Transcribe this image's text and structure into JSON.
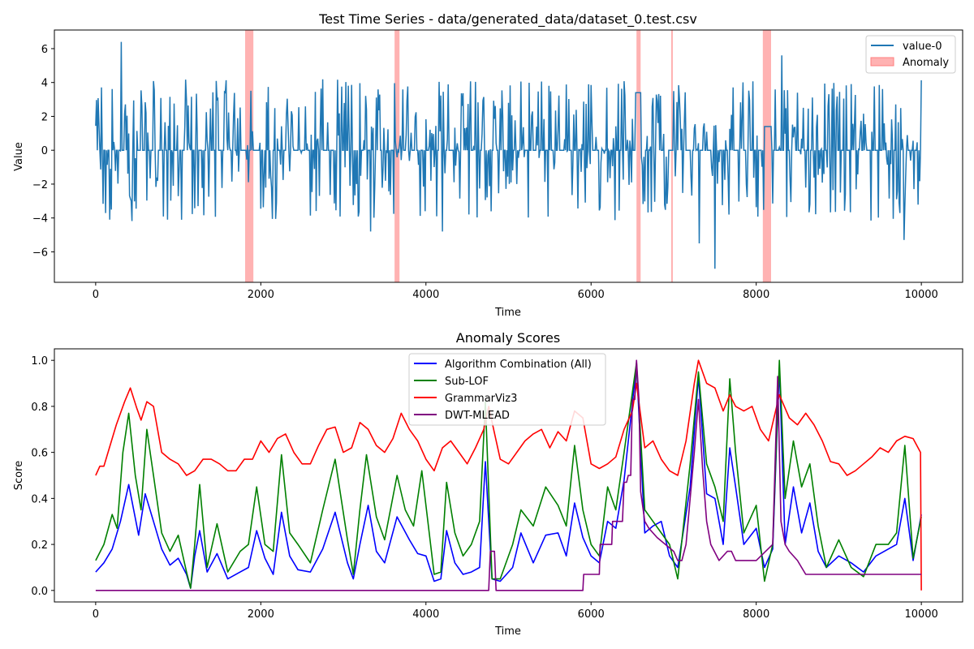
{
  "chart_data": [
    {
      "type": "line",
      "title": "Test Time Series - data/generated_data/dataset_0.test.csv",
      "xlabel": "Time",
      "ylabel": "Value",
      "xlim": [
        -500,
        10500
      ],
      "ylim": [
        -7.8,
        7.1
      ],
      "xticks": [
        0,
        2000,
        4000,
        6000,
        8000,
        10000
      ],
      "yticks": [
        -6,
        -4,
        -2,
        0,
        2,
        4,
        6
      ],
      "legend_position": "upper right",
      "grid": false,
      "series": [
        {
          "name": "value-0",
          "color": "#1f77b4",
          "x_range": [
            0,
            10000
          ],
          "description_of_values": "Spiky noise around 0, mostly within -4..4, occasional peaks near 6.4 and troughs near -7",
          "notable_points": [
            {
              "x": 310,
              "y": 6.4
            },
            {
              "x": 7500,
              "y": -7.0
            },
            {
              "x": 3330,
              "y": -4.8
            },
            {
              "x": 4200,
              "y": -4.8
            },
            {
              "x": 7310,
              "y": -5.5
            },
            {
              "x": 9790,
              "y": -5.3
            },
            {
              "x": 8310,
              "y": 5.6
            },
            {
              "x": 6550,
              "y": 3.4
            },
            {
              "x": 8110,
              "y": 1.4
            }
          ]
        }
      ],
      "anomaly_regions": {
        "name": "Anomaly",
        "color": "#ff7f7f",
        "ranges": [
          [
            1810,
            1910
          ],
          [
            3620,
            3680
          ],
          [
            6550,
            6600
          ],
          [
            6970,
            6990
          ],
          [
            8080,
            8180
          ]
        ]
      }
    },
    {
      "type": "line",
      "title": "Anomaly Scores",
      "xlabel": "Time",
      "ylabel": "Score",
      "xlim": [
        -500,
        10500
      ],
      "ylim": [
        -0.05,
        1.05
      ],
      "xticks": [
        0,
        2000,
        4000,
        6000,
        8000,
        10000
      ],
      "yticks": [
        0.0,
        0.2,
        0.4,
        0.6,
        0.8,
        1.0
      ],
      "legend_position": "upper center",
      "grid": false,
      "series": [
        {
          "name": "Algorithm Combination (All)",
          "color": "#0000ff",
          "x": [
            0,
            100,
            200,
            300,
            400,
            520,
            600,
            700,
            800,
            900,
            1000,
            1100,
            1150,
            1200,
            1260,
            1350,
            1470,
            1600,
            1750,
            1850,
            1950,
            2050,
            2150,
            2250,
            2350,
            2450,
            2600,
            2750,
            2900,
            3050,
            3120,
            3200,
            3300,
            3400,
            3500,
            3650,
            3800,
            3900,
            4000,
            4100,
            4180,
            4250,
            4350,
            4450,
            4550,
            4650,
            4720,
            4800,
            4900,
            5050,
            5150,
            5300,
            5450,
            5600,
            5700,
            5800,
            5900,
            6000,
            6100,
            6200,
            6300,
            6400,
            6550,
            6650,
            6750,
            6850,
            6950,
            7050,
            7200,
            7300,
            7400,
            7500,
            7600,
            7680,
            7750,
            7850,
            8000,
            8100,
            8200,
            8280,
            8350,
            8450,
            8550,
            8650,
            8750,
            8850,
            9000,
            9150,
            9300,
            9450,
            9600,
            9700,
            9800,
            9900,
            10000
          ],
          "y": [
            0.08,
            0.12,
            0.18,
            0.3,
            0.46,
            0.24,
            0.42,
            0.3,
            0.18,
            0.11,
            0.14,
            0.07,
            0.01,
            0.15,
            0.26,
            0.08,
            0.16,
            0.05,
            0.08,
            0.1,
            0.26,
            0.14,
            0.07,
            0.34,
            0.15,
            0.09,
            0.08,
            0.18,
            0.34,
            0.12,
            0.05,
            0.2,
            0.37,
            0.17,
            0.12,
            0.32,
            0.22,
            0.16,
            0.15,
            0.04,
            0.05,
            0.26,
            0.12,
            0.07,
            0.08,
            0.1,
            0.56,
            0.05,
            0.04,
            0.1,
            0.25,
            0.12,
            0.24,
            0.25,
            0.15,
            0.38,
            0.23,
            0.15,
            0.12,
            0.3,
            0.27,
            0.48,
            0.98,
            0.25,
            0.28,
            0.3,
            0.15,
            0.1,
            0.45,
            0.93,
            0.42,
            0.4,
            0.2,
            0.62,
            0.45,
            0.2,
            0.27,
            0.1,
            0.18,
            0.97,
            0.2,
            0.45,
            0.25,
            0.38,
            0.17,
            0.1,
            0.15,
            0.12,
            0.08,
            0.15,
            0.18,
            0.2,
            0.4,
            0.13,
            0.33
          ]
        },
        {
          "name": "Sub-LOF",
          "color": "#008000",
          "x": [
            0,
            100,
            200,
            260,
            330,
            400,
            480,
            550,
            620,
            700,
            800,
            900,
            1000,
            1100,
            1150,
            1200,
            1260,
            1350,
            1470,
            1600,
            1750,
            1850,
            1950,
            2050,
            2150,
            2250,
            2350,
            2450,
            2600,
            2750,
            2900,
            3050,
            3120,
            3200,
            3280,
            3400,
            3500,
            3650,
            3750,
            3850,
            3950,
            4100,
            4180,
            4250,
            4350,
            4450,
            4550,
            4650,
            4720,
            4800,
            4900,
            5050,
            5150,
            5300,
            5450,
            5600,
            5700,
            5800,
            5900,
            6000,
            6100,
            6200,
            6300,
            6400,
            6550,
            6650,
            6750,
            6850,
            6950,
            7050,
            7200,
            7300,
            7400,
            7500,
            7600,
            7680,
            7750,
            7850,
            8000,
            8100,
            8200,
            8280,
            8350,
            8450,
            8550,
            8650,
            8750,
            8850,
            9000,
            9150,
            9300,
            9450,
            9600,
            9700,
            9800,
            9900,
            10000
          ],
          "y": [
            0.13,
            0.2,
            0.33,
            0.27,
            0.6,
            0.77,
            0.5,
            0.35,
            0.7,
            0.5,
            0.25,
            0.17,
            0.24,
            0.08,
            0.01,
            0.2,
            0.46,
            0.1,
            0.29,
            0.08,
            0.17,
            0.2,
            0.45,
            0.2,
            0.17,
            0.59,
            0.25,
            0.2,
            0.12,
            0.35,
            0.57,
            0.22,
            0.07,
            0.35,
            0.59,
            0.32,
            0.22,
            0.5,
            0.35,
            0.28,
            0.52,
            0.07,
            0.08,
            0.47,
            0.25,
            0.15,
            0.2,
            0.3,
            0.82,
            0.05,
            0.05,
            0.2,
            0.35,
            0.28,
            0.45,
            0.37,
            0.28,
            0.63,
            0.35,
            0.2,
            0.15,
            0.45,
            0.35,
            0.6,
            0.99,
            0.35,
            0.3,
            0.25,
            0.2,
            0.05,
            0.55,
            0.95,
            0.55,
            0.45,
            0.3,
            0.92,
            0.6,
            0.25,
            0.37,
            0.04,
            0.2,
            1.0,
            0.4,
            0.65,
            0.45,
            0.55,
            0.28,
            0.1,
            0.22,
            0.1,
            0.06,
            0.2,
            0.2,
            0.25,
            0.63,
            0.14,
            0.32
          ]
        },
        {
          "name": "GrammarViz3",
          "color": "#ff0000",
          "x": [
            0,
            50,
            100,
            150,
            250,
            350,
            420,
            500,
            550,
            620,
            700,
            800,
            900,
            1000,
            1100,
            1200,
            1300,
            1400,
            1500,
            1600,
            1700,
            1800,
            1900,
            2000,
            2100,
            2200,
            2300,
            2400,
            2500,
            2600,
            2700,
            2800,
            2900,
            3000,
            3100,
            3200,
            3300,
            3400,
            3500,
            3600,
            3700,
            3800,
            3900,
            4000,
            4100,
            4200,
            4300,
            4400,
            4500,
            4600,
            4700,
            4760,
            4820,
            4900,
            5000,
            5100,
            5200,
            5300,
            5400,
            5500,
            5600,
            5700,
            5800,
            5900,
            6000,
            6100,
            6200,
            6300,
            6400,
            6500,
            6550,
            6650,
            6750,
            6850,
            6950,
            7050,
            7150,
            7250,
            7300,
            7400,
            7500,
            7600,
            7680,
            7750,
            7850,
            7950,
            8050,
            8150,
            8280,
            8400,
            8500,
            8600,
            8700,
            8800,
            8900,
            9000,
            9100,
            9200,
            9300,
            9400,
            9500,
            9600,
            9700,
            9800,
            9900,
            9990,
            10000
          ],
          "y": [
            0.5,
            0.54,
            0.54,
            0.6,
            0.72,
            0.82,
            0.88,
            0.79,
            0.74,
            0.82,
            0.8,
            0.6,
            0.57,
            0.55,
            0.5,
            0.52,
            0.57,
            0.57,
            0.55,
            0.52,
            0.52,
            0.57,
            0.57,
            0.65,
            0.6,
            0.66,
            0.68,
            0.6,
            0.55,
            0.55,
            0.63,
            0.7,
            0.71,
            0.6,
            0.62,
            0.73,
            0.7,
            0.63,
            0.6,
            0.66,
            0.77,
            0.7,
            0.65,
            0.57,
            0.52,
            0.62,
            0.65,
            0.6,
            0.55,
            0.62,
            0.7,
            0.8,
            0.7,
            0.57,
            0.55,
            0.6,
            0.65,
            0.68,
            0.7,
            0.62,
            0.69,
            0.65,
            0.78,
            0.75,
            0.55,
            0.53,
            0.55,
            0.58,
            0.7,
            0.78,
            0.9,
            0.62,
            0.65,
            0.57,
            0.52,
            0.5,
            0.65,
            0.9,
            1.0,
            0.9,
            0.88,
            0.78,
            0.85,
            0.8,
            0.78,
            0.8,
            0.7,
            0.65,
            0.85,
            0.75,
            0.72,
            0.77,
            0.72,
            0.65,
            0.56,
            0.55,
            0.5,
            0.52,
            0.55,
            0.58,
            0.62,
            0.6,
            0.65,
            0.67,
            0.66,
            0.6,
            0.0
          ]
        },
        {
          "name": "DWT-MLEAD",
          "color": "#800080",
          "x": [
            0,
            4760,
            4780,
            4830,
            4850,
            5900,
            5910,
            6100,
            6110,
            6250,
            6260,
            6380,
            6400,
            6430,
            6450,
            6480,
            6500,
            6530,
            6550,
            6580,
            6600,
            6650,
            6700,
            6800,
            6900,
            7000,
            7050,
            7100,
            7150,
            7200,
            7250,
            7300,
            7350,
            7400,
            7450,
            7550,
            7650,
            7700,
            7750,
            8000,
            8200,
            8260,
            8300,
            8350,
            8400,
            8500,
            8550,
            8600,
            8700,
            8800,
            9000,
            9500,
            10000
          ],
          "y": [
            0.0,
            0.0,
            0.17,
            0.17,
            0.0,
            0.0,
            0.07,
            0.07,
            0.2,
            0.2,
            0.3,
            0.3,
            0.47,
            0.47,
            0.5,
            0.5,
            0.83,
            0.83,
            1.0,
            0.83,
            0.43,
            0.3,
            0.27,
            0.23,
            0.2,
            0.17,
            0.13,
            0.13,
            0.2,
            0.4,
            0.6,
            0.83,
            0.53,
            0.3,
            0.2,
            0.13,
            0.17,
            0.17,
            0.13,
            0.13,
            0.2,
            0.93,
            0.3,
            0.2,
            0.17,
            0.13,
            0.1,
            0.07,
            0.07,
            0.07,
            0.07,
            0.07,
            0.07
          ]
        }
      ]
    }
  ]
}
